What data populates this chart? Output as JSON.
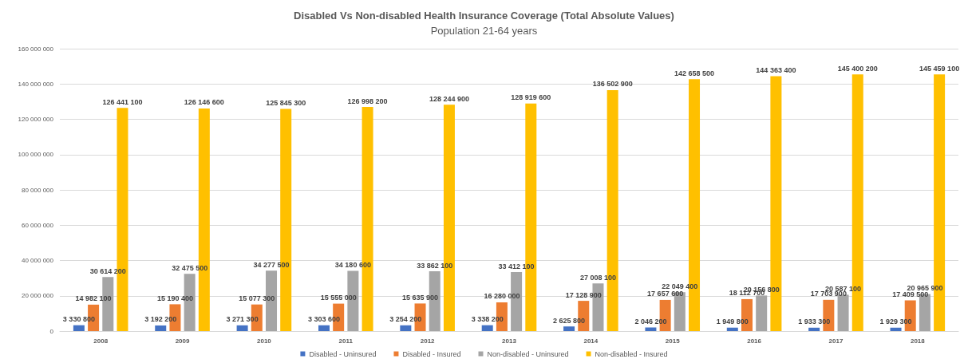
{
  "chart_data": {
    "type": "bar",
    "title": "Disabled Vs Non-disabled Health Insurance Coverage (Total Absolute Values)",
    "subtitle": "Population 21-64 years",
    "categories": [
      "2008",
      "2009",
      "2010",
      "2011",
      "2012",
      "2013",
      "2014",
      "2015",
      "2016",
      "2017",
      "2018"
    ],
    "series": [
      {
        "name": "Disabled - Uninsured",
        "color": "#4472c4",
        "values": [
          3330800,
          3192200,
          3271300,
          3303600,
          3254200,
          3338200,
          2625800,
          2046200,
          1949800,
          1933300,
          1929300
        ],
        "value_labels": [
          "3 330 800",
          "3 192 200",
          "3 271 300",
          "3 303 600",
          "3 254 200",
          "3 338 200",
          "2 625 800",
          "2 046 200",
          "1 949 800",
          "1 933 300",
          "1 929 300"
        ]
      },
      {
        "name": "Disabled - Insured",
        "color": "#ed7d31",
        "values": [
          14982100,
          15190400,
          15077300,
          15555000,
          15635900,
          16280000,
          17128900,
          17657600,
          18112700,
          17703900,
          17409500
        ],
        "value_labels": [
          "14 982 100",
          "15 190 400",
          "15 077 300",
          "15 555 000",
          "15 635 900",
          "16 280 000",
          "17 128 900",
          "17 657 600",
          "18 112 700",
          "17 703 900",
          "17 409 500"
        ]
      },
      {
        "name": "Non-disabled - Uninsured",
        "color": "#a5a5a5",
        "values": [
          30614200,
          32475500,
          34277500,
          34180600,
          33862100,
          33412100,
          27008100,
          22049400,
          20156800,
          20587100,
          20965900
        ],
        "value_labels": [
          "30 614 200",
          "32 475 500",
          "34 277 500",
          "34 180 600",
          "33 862 100",
          "33 412 100",
          "27 008 100",
          "22 049 400",
          "20 156 800",
          "20 587 100",
          "20 965 900"
        ]
      },
      {
        "name": "Non-disabled - Insured",
        "color": "#ffc000",
        "values": [
          126441100,
          126146600,
          125845300,
          126998200,
          128244900,
          128919600,
          136502900,
          142658500,
          144363400,
          145400200,
          145459100
        ],
        "value_labels": [
          "126 441 100",
          "126 146 600",
          "125 845 300",
          "126 998 200",
          "128 244 900",
          "128 919 600",
          "136 502 900",
          "142 658 500",
          "144 363 400",
          "145 400 200",
          "145 459 100"
        ]
      }
    ],
    "ylim": [
      0,
      160000000
    ],
    "yticks": [
      0,
      {
        "value": 20000000,
        "label": "20 000 000"
      },
      {
        "value": 40000000,
        "label": "40 000 000"
      },
      {
        "value": 60000000,
        "label": "60 000 000"
      },
      {
        "value": 80000000,
        "label": "80 000 000"
      },
      {
        "value": 100000000,
        "label": "100 000 000"
      },
      {
        "value": 120000000,
        "label": "120 000 000"
      },
      {
        "value": 140000000,
        "label": "140 000 000"
      },
      {
        "value": 160000000,
        "label": "160 000 000"
      }
    ],
    "grid": "y",
    "legend": "bottom"
  }
}
